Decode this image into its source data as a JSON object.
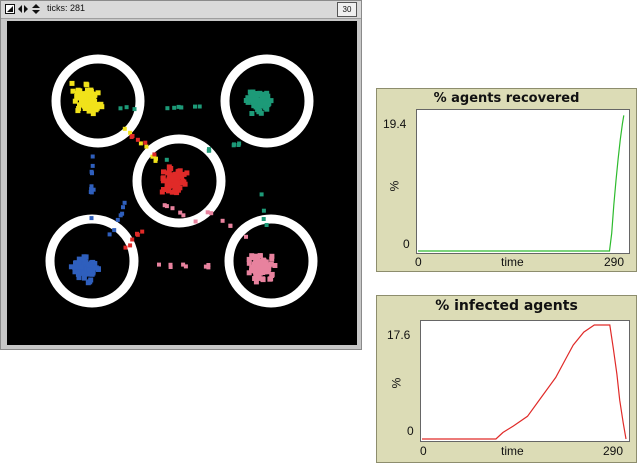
{
  "world": {
    "ticks_label": "ticks: 281",
    "speed_value": "30",
    "toolbar_icons": [
      "edit-icon",
      "horizontal-arrows-icon",
      "vertical-arrows-icon"
    ],
    "colors": {
      "background": "#000000",
      "ring": "#ffffff",
      "yellow": "#f1e21a",
      "green": "#1d9a78",
      "red": "#e02a28",
      "blue": "#2f5fbd",
      "pink": "#e8829e"
    }
  },
  "plots": [
    {
      "title": "% agents recovered",
      "ylabel": "%",
      "xlabel": "time",
      "x_min_label": "0",
      "x_max_label": "290",
      "y_min_label": "0",
      "y_max_label": "19.4",
      "line_color": "#2dbb2d"
    },
    {
      "title": "%  infected agents",
      "ylabel": "%",
      "xlabel": "time",
      "x_min_label": "0",
      "x_max_label": "290",
      "y_min_label": "0",
      "y_max_label": "17.6",
      "line_color": "#e02a28"
    }
  ],
  "chart_data": [
    {
      "type": "line",
      "title": "% agents recovered",
      "xlabel": "time",
      "ylabel": "%",
      "xlim": [
        0,
        290
      ],
      "ylim": [
        0,
        19.4
      ],
      "grid": false,
      "series": [
        {
          "x": [
            0,
            100,
            200,
            250,
            267,
            270,
            273,
            276,
            279,
            282,
            285,
            287
          ],
          "y": [
            0,
            0,
            0,
            0,
            0,
            2.5,
            6.5,
            10.0,
            13.0,
            15.8,
            18.0,
            19.2
          ]
        }
      ]
    },
    {
      "type": "line",
      "title": "%  infected agents",
      "xlabel": "time",
      "ylabel": "%",
      "xlim": [
        0,
        290
      ],
      "ylim": [
        0,
        17.6
      ],
      "grid": false,
      "series": [
        {
          "x": [
            0,
            50,
            105,
            115,
            130,
            150,
            170,
            190,
            205,
            215,
            230,
            245,
            255,
            260,
            267,
            272,
            277,
            281,
            286,
            290
          ],
          "y": [
            0,
            0,
            0,
            1.0,
            2.0,
            3.5,
            6.5,
            9.5,
            12.5,
            14.5,
            16.5,
            17.6,
            17.6,
            17.6,
            17.6,
            14.0,
            10.0,
            6.0,
            2.5,
            0
          ]
        }
      ]
    }
  ]
}
